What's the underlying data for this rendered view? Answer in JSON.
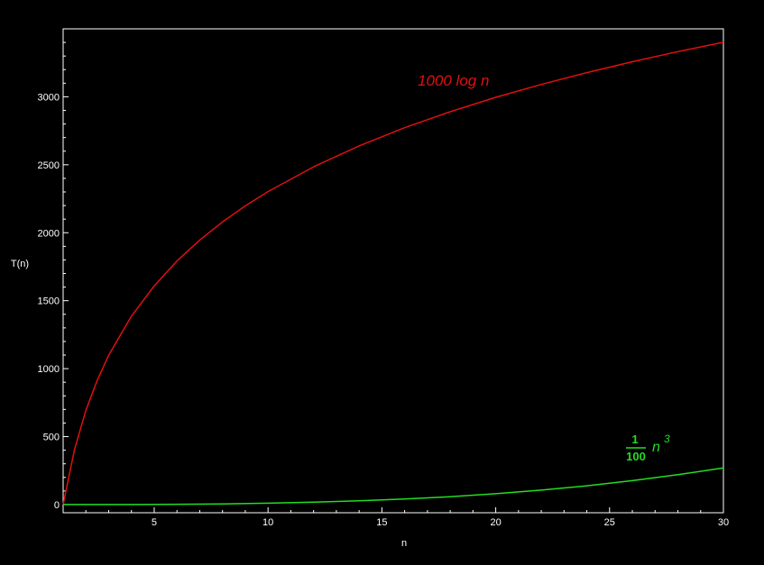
{
  "chart_data": {
    "type": "line",
    "xlabel": "n",
    "ylabel": "T(n)",
    "xlim": [
      1,
      30
    ],
    "ylim": [
      -60,
      3500
    ],
    "xticks": [
      5,
      10,
      15,
      20,
      25,
      30
    ],
    "yticks": [
      0,
      500,
      1000,
      1500,
      2000,
      2500,
      3000
    ],
    "grid": false,
    "series": [
      {
        "label": "1000 log n",
        "color": "#e01010",
        "x": [
          1,
          1.5,
          2,
          2.5,
          3,
          4,
          5,
          6,
          7,
          8,
          9,
          10,
          12,
          14,
          16,
          18,
          20,
          22,
          24,
          26,
          28,
          30
        ],
        "y": [
          0,
          405,
          693,
          916,
          1099,
          1386,
          1609,
          1792,
          1946,
          2079,
          2197,
          2303,
          2485,
          2639,
          2773,
          2890,
          2996,
          3091,
          3178,
          3258,
          3332,
          3401
        ]
      },
      {
        "label_numerator": "1",
        "label_denominator": "100",
        "label_var": "n",
        "label_exp": "3",
        "color": "#22dd22",
        "x": [
          1,
          2,
          4,
          6,
          8,
          10,
          12,
          14,
          16,
          18,
          20,
          22,
          24,
          26,
          28,
          30
        ],
        "y": [
          0.01,
          0.08,
          0.64,
          2.16,
          5.12,
          10,
          17.28,
          27.44,
          40.96,
          58.32,
          80,
          106.48,
          138.24,
          175.76,
          219.52,
          270
        ]
      }
    ]
  }
}
